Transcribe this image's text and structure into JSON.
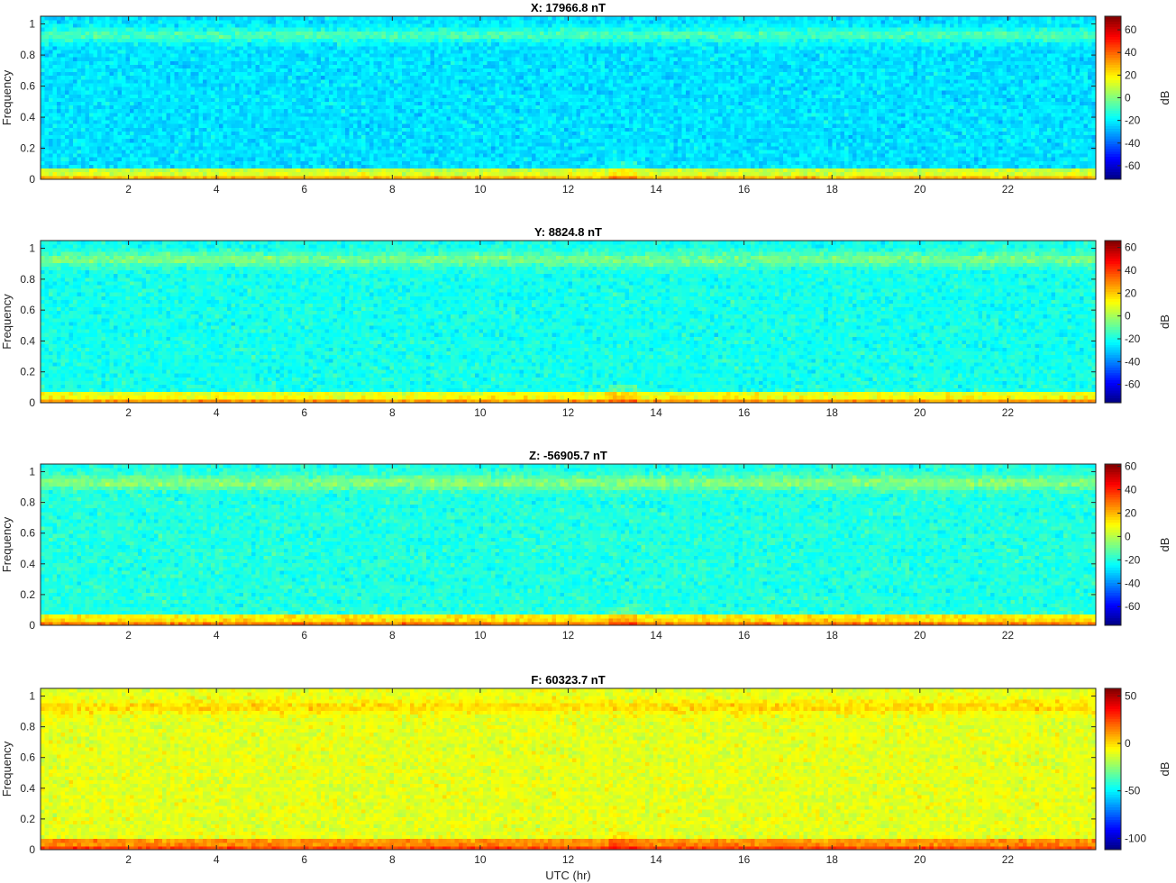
{
  "figure": {
    "xlabel": "UTC (hr)"
  },
  "colors": {
    "colormap": "jet",
    "axes": "#262626",
    "background": "#ffffff"
  },
  "chart_data": [
    {
      "type": "heatmap",
      "title": "X: 17966.8 nT",
      "xlabel": "",
      "ylabel": "Frequency",
      "xlim": [
        0,
        24
      ],
      "ylim": [
        0,
        1.05
      ],
      "x_ticks": [
        2,
        4,
        6,
        8,
        10,
        12,
        14,
        16,
        18,
        20,
        22
      ],
      "y_ticks": [
        0,
        0.2,
        0.4,
        0.6,
        0.8,
        1
      ],
      "colorbar": {
        "label": "dB",
        "clim": [
          -72,
          72
        ],
        "ticks": [
          -60,
          -40,
          -20,
          0,
          20,
          40,
          60
        ]
      },
      "profile": {
        "base_db": -22,
        "band_db": -8,
        "low_db": 10,
        "bottom_db": 60,
        "noise": 9
      }
    },
    {
      "type": "heatmap",
      "title": "Y: 8824.8 nT",
      "xlabel": "",
      "ylabel": "Frequency",
      "xlim": [
        0,
        24
      ],
      "ylim": [
        0,
        1.05
      ],
      "x_ticks": [
        2,
        4,
        6,
        8,
        10,
        12,
        14,
        16,
        18,
        20,
        22
      ],
      "y_ticks": [
        0,
        0.2,
        0.4,
        0.6,
        0.8,
        1
      ],
      "colorbar": {
        "label": "dB",
        "clim": [
          -76,
          66
        ],
        "ticks": [
          -60,
          -40,
          -20,
          0,
          20,
          40,
          60
        ]
      },
      "profile": {
        "base_db": -20,
        "band_db": -6,
        "low_db": 10,
        "bottom_db": 56,
        "noise": 9
      }
    },
    {
      "type": "heatmap",
      "title": "Z: -56905.7 nT",
      "xlabel": "",
      "ylabel": "Frequency",
      "xlim": [
        0,
        24
      ],
      "ylim": [
        0,
        1.05
      ],
      "x_ticks": [
        2,
        4,
        6,
        8,
        10,
        12,
        14,
        16,
        18,
        20,
        22
      ],
      "y_ticks": [
        0,
        0.2,
        0.4,
        0.6,
        0.8,
        1
      ],
      "colorbar": {
        "label": "dB",
        "clim": [
          -76,
          62
        ],
        "ticks": [
          -60,
          -40,
          -20,
          0,
          20,
          40,
          60
        ]
      },
      "profile": {
        "base_db": -20,
        "band_db": -6,
        "low_db": 12,
        "bottom_db": 55,
        "noise": 9
      }
    },
    {
      "type": "heatmap",
      "title": "F: 60323.7 nT",
      "xlabel": "UTC (hr)",
      "ylabel": "Frequency",
      "xlim": [
        0,
        24
      ],
      "ylim": [
        0,
        1.05
      ],
      "x_ticks": [
        2,
        4,
        6,
        8,
        10,
        12,
        14,
        16,
        18,
        20,
        22
      ],
      "y_ticks": [
        0,
        0.2,
        0.4,
        0.6,
        0.8,
        1
      ],
      "colorbar": {
        "label": "dB",
        "clim": [
          -112,
          58
        ],
        "ticks": [
          -100,
          -50,
          0,
          50
        ]
      },
      "profile": {
        "base_db": -10,
        "band_db": 0,
        "low_db": 12,
        "bottom_db": 50,
        "noise": 10
      }
    }
  ]
}
